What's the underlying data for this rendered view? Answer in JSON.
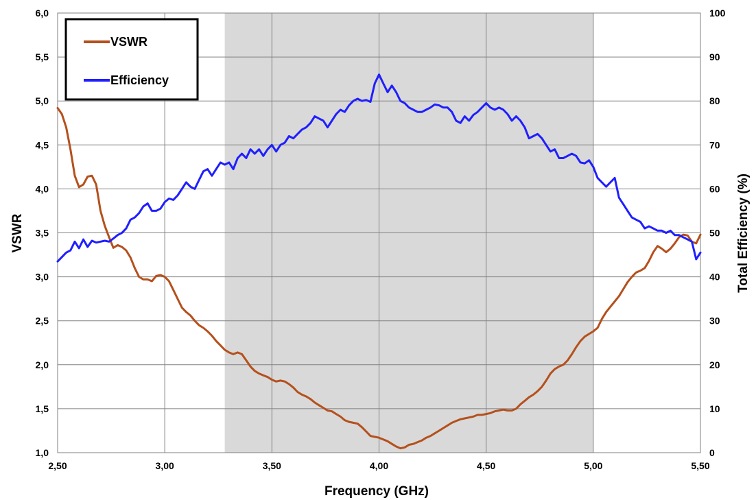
{
  "chart_data": {
    "type": "line",
    "title": "",
    "xlabel": "Frequency (GHz)",
    "ylabel": "VSWR",
    "y2label": "Total Efficiency (%)",
    "xlim": [
      2.5,
      5.5
    ],
    "ylim": [
      1.0,
      6.0
    ],
    "y2lim": [
      0,
      100
    ],
    "x_ticks": [
      "2,50",
      "3,00",
      "3,50",
      "4,00",
      "4,50",
      "5,00",
      "5,50"
    ],
    "y_ticks": [
      "1,0",
      "1,5",
      "2,0",
      "2,5",
      "3,0",
      "3,5",
      "4,0",
      "4,5",
      "5,0",
      "5,5",
      "6,0"
    ],
    "y2_ticks": [
      "0",
      "10",
      "20",
      "30",
      "40",
      "50",
      "60",
      "70",
      "80",
      "90",
      "100"
    ],
    "grid": true,
    "legend_position": "top-left",
    "shaded_band": [
      3.28,
      5.0
    ],
    "colors": {
      "vswr": "#b5501c",
      "efficiency": "#1f1fff",
      "band": "#d9d9d9"
    },
    "series": [
      {
        "name": "VSWR",
        "axis": "left",
        "points": [
          [
            2.5,
            4.92
          ],
          [
            2.52,
            4.85
          ],
          [
            2.54,
            4.7
          ],
          [
            2.56,
            4.45
          ],
          [
            2.58,
            4.15
          ],
          [
            2.6,
            4.02
          ],
          [
            2.62,
            4.05
          ],
          [
            2.64,
            4.14
          ],
          [
            2.66,
            4.15
          ],
          [
            2.68,
            4.05
          ],
          [
            2.7,
            3.75
          ],
          [
            2.72,
            3.58
          ],
          [
            2.74,
            3.45
          ],
          [
            2.76,
            3.33
          ],
          [
            2.78,
            3.36
          ],
          [
            2.8,
            3.34
          ],
          [
            2.82,
            3.3
          ],
          [
            2.84,
            3.22
          ],
          [
            2.86,
            3.1
          ],
          [
            2.88,
            3.0
          ],
          [
            2.9,
            2.97
          ],
          [
            2.92,
            2.97
          ],
          [
            2.94,
            2.95
          ],
          [
            2.96,
            3.01
          ],
          [
            2.98,
            3.02
          ],
          [
            3.0,
            3.0
          ],
          [
            3.02,
            2.95
          ],
          [
            3.04,
            2.85
          ],
          [
            3.06,
            2.75
          ],
          [
            3.08,
            2.65
          ],
          [
            3.1,
            2.6
          ],
          [
            3.12,
            2.56
          ],
          [
            3.14,
            2.5
          ],
          [
            3.16,
            2.45
          ],
          [
            3.18,
            2.42
          ],
          [
            3.2,
            2.38
          ],
          [
            3.22,
            2.33
          ],
          [
            3.24,
            2.27
          ],
          [
            3.26,
            2.22
          ],
          [
            3.28,
            2.17
          ],
          [
            3.3,
            2.14
          ],
          [
            3.32,
            2.12
          ],
          [
            3.34,
            2.14
          ],
          [
            3.36,
            2.12
          ],
          [
            3.38,
            2.05
          ],
          [
            3.4,
            1.98
          ],
          [
            3.42,
            1.93
          ],
          [
            3.44,
            1.9
          ],
          [
            3.46,
            1.88
          ],
          [
            3.48,
            1.86
          ],
          [
            3.5,
            1.83
          ],
          [
            3.52,
            1.81
          ],
          [
            3.54,
            1.82
          ],
          [
            3.56,
            1.81
          ],
          [
            3.58,
            1.78
          ],
          [
            3.6,
            1.74
          ],
          [
            3.62,
            1.69
          ],
          [
            3.64,
            1.66
          ],
          [
            3.66,
            1.64
          ],
          [
            3.68,
            1.61
          ],
          [
            3.7,
            1.57
          ],
          [
            3.72,
            1.54
          ],
          [
            3.74,
            1.51
          ],
          [
            3.76,
            1.48
          ],
          [
            3.78,
            1.47
          ],
          [
            3.8,
            1.44
          ],
          [
            3.82,
            1.41
          ],
          [
            3.84,
            1.37
          ],
          [
            3.86,
            1.35
          ],
          [
            3.88,
            1.34
          ],
          [
            3.9,
            1.33
          ],
          [
            3.92,
            1.29
          ],
          [
            3.94,
            1.24
          ],
          [
            3.96,
            1.19
          ],
          [
            3.98,
            1.18
          ],
          [
            4.0,
            1.17
          ],
          [
            4.02,
            1.15
          ],
          [
            4.04,
            1.13
          ],
          [
            4.06,
            1.1
          ],
          [
            4.08,
            1.07
          ],
          [
            4.1,
            1.05
          ],
          [
            4.12,
            1.06
          ],
          [
            4.14,
            1.09
          ],
          [
            4.16,
            1.1
          ],
          [
            4.18,
            1.12
          ],
          [
            4.2,
            1.14
          ],
          [
            4.22,
            1.17
          ],
          [
            4.24,
            1.19
          ],
          [
            4.26,
            1.22
          ],
          [
            4.28,
            1.25
          ],
          [
            4.3,
            1.28
          ],
          [
            4.32,
            1.31
          ],
          [
            4.34,
            1.34
          ],
          [
            4.36,
            1.36
          ],
          [
            4.38,
            1.38
          ],
          [
            4.4,
            1.39
          ],
          [
            4.42,
            1.4
          ],
          [
            4.44,
            1.41
          ],
          [
            4.46,
            1.43
          ],
          [
            4.48,
            1.43
          ],
          [
            4.5,
            1.44
          ],
          [
            4.52,
            1.45
          ],
          [
            4.54,
            1.47
          ],
          [
            4.56,
            1.48
          ],
          [
            4.58,
            1.49
          ],
          [
            4.6,
            1.48
          ],
          [
            4.62,
            1.48
          ],
          [
            4.64,
            1.5
          ],
          [
            4.66,
            1.55
          ],
          [
            4.68,
            1.59
          ],
          [
            4.7,
            1.63
          ],
          [
            4.72,
            1.66
          ],
          [
            4.74,
            1.7
          ],
          [
            4.76,
            1.75
          ],
          [
            4.78,
            1.82
          ],
          [
            4.8,
            1.9
          ],
          [
            4.82,
            1.95
          ],
          [
            4.84,
            1.98
          ],
          [
            4.86,
            2.0
          ],
          [
            4.88,
            2.05
          ],
          [
            4.9,
            2.12
          ],
          [
            4.92,
            2.2
          ],
          [
            4.94,
            2.27
          ],
          [
            4.96,
            2.32
          ],
          [
            4.98,
            2.35
          ],
          [
            5.0,
            2.38
          ],
          [
            5.02,
            2.42
          ],
          [
            5.04,
            2.52
          ],
          [
            5.06,
            2.6
          ],
          [
            5.08,
            2.66
          ],
          [
            5.1,
            2.72
          ],
          [
            5.12,
            2.78
          ],
          [
            5.14,
            2.86
          ],
          [
            5.16,
            2.94
          ],
          [
            5.18,
            3.0
          ],
          [
            5.2,
            3.05
          ],
          [
            5.22,
            3.07
          ],
          [
            5.24,
            3.1
          ],
          [
            5.26,
            3.18
          ],
          [
            5.28,
            3.28
          ],
          [
            5.3,
            3.35
          ],
          [
            5.32,
            3.32
          ],
          [
            5.34,
            3.28
          ],
          [
            5.36,
            3.32
          ],
          [
            5.38,
            3.38
          ],
          [
            5.4,
            3.45
          ],
          [
            5.42,
            3.48
          ],
          [
            5.44,
            3.47
          ],
          [
            5.46,
            3.4
          ],
          [
            5.48,
            3.38
          ],
          [
            5.5,
            3.48
          ]
        ]
      },
      {
        "name": "Efficiency",
        "axis": "right",
        "points": [
          [
            2.5,
            43.5
          ],
          [
            2.52,
            44.5
          ],
          [
            2.54,
            45.5
          ],
          [
            2.56,
            46.0
          ],
          [
            2.58,
            48.0
          ],
          [
            2.6,
            46.5
          ],
          [
            2.62,
            48.5
          ],
          [
            2.64,
            46.8
          ],
          [
            2.66,
            48.2
          ],
          [
            2.68,
            47.8
          ],
          [
            2.7,
            48.0
          ],
          [
            2.72,
            48.2
          ],
          [
            2.74,
            48.0
          ],
          [
            2.76,
            48.7
          ],
          [
            2.78,
            49.5
          ],
          [
            2.8,
            50.0
          ],
          [
            2.82,
            51.0
          ],
          [
            2.84,
            53.0
          ],
          [
            2.86,
            53.5
          ],
          [
            2.88,
            54.5
          ],
          [
            2.9,
            56.0
          ],
          [
            2.92,
            56.7
          ],
          [
            2.94,
            55.0
          ],
          [
            2.96,
            55.0
          ],
          [
            2.98,
            55.5
          ],
          [
            3.0,
            57.0
          ],
          [
            3.02,
            57.8
          ],
          [
            3.04,
            57.5
          ],
          [
            3.06,
            58.5
          ],
          [
            3.08,
            60.0
          ],
          [
            3.1,
            61.5
          ],
          [
            3.12,
            60.5
          ],
          [
            3.14,
            60.0
          ],
          [
            3.16,
            62.0
          ],
          [
            3.18,
            64.0
          ],
          [
            3.2,
            64.5
          ],
          [
            3.22,
            63.0
          ],
          [
            3.24,
            64.5
          ],
          [
            3.26,
            66.0
          ],
          [
            3.28,
            65.5
          ],
          [
            3.3,
            66.0
          ],
          [
            3.32,
            64.5
          ],
          [
            3.34,
            67.0
          ],
          [
            3.36,
            68.0
          ],
          [
            3.38,
            67.0
          ],
          [
            3.4,
            69.0
          ],
          [
            3.42,
            68.0
          ],
          [
            3.44,
            69.0
          ],
          [
            3.46,
            67.5
          ],
          [
            3.48,
            69.0
          ],
          [
            3.5,
            70.0
          ],
          [
            3.52,
            68.5
          ],
          [
            3.54,
            70.0
          ],
          [
            3.56,
            70.5
          ],
          [
            3.58,
            72.0
          ],
          [
            3.6,
            71.5
          ],
          [
            3.62,
            72.5
          ],
          [
            3.64,
            73.5
          ],
          [
            3.66,
            74.0
          ],
          [
            3.68,
            75.0
          ],
          [
            3.7,
            76.5
          ],
          [
            3.72,
            76.0
          ],
          [
            3.74,
            75.5
          ],
          [
            3.76,
            74.0
          ],
          [
            3.78,
            75.5
          ],
          [
            3.8,
            77.0
          ],
          [
            3.82,
            78.0
          ],
          [
            3.84,
            77.5
          ],
          [
            3.86,
            79.0
          ],
          [
            3.88,
            80.0
          ],
          [
            3.9,
            80.5
          ],
          [
            3.92,
            80.0
          ],
          [
            3.94,
            80.2
          ],
          [
            3.96,
            79.8
          ],
          [
            3.98,
            84.0
          ],
          [
            4.0,
            86.0
          ],
          [
            4.02,
            84.0
          ],
          [
            4.04,
            82.0
          ],
          [
            4.06,
            83.5
          ],
          [
            4.08,
            82.0
          ],
          [
            4.1,
            80.0
          ],
          [
            4.12,
            79.5
          ],
          [
            4.14,
            78.5
          ],
          [
            4.16,
            78.0
          ],
          [
            4.18,
            77.5
          ],
          [
            4.2,
            77.5
          ],
          [
            4.22,
            78.0
          ],
          [
            4.24,
            78.5
          ],
          [
            4.26,
            79.2
          ],
          [
            4.28,
            79.0
          ],
          [
            4.3,
            78.5
          ],
          [
            4.32,
            78.5
          ],
          [
            4.34,
            77.5
          ],
          [
            4.36,
            75.5
          ],
          [
            4.38,
            75.0
          ],
          [
            4.4,
            76.5
          ],
          [
            4.42,
            75.5
          ],
          [
            4.44,
            76.8
          ],
          [
            4.46,
            77.5
          ],
          [
            4.48,
            78.5
          ],
          [
            4.5,
            79.5
          ],
          [
            4.52,
            78.5
          ],
          [
            4.54,
            78.0
          ],
          [
            4.56,
            78.5
          ],
          [
            4.58,
            78.0
          ],
          [
            4.6,
            77.0
          ],
          [
            4.62,
            75.5
          ],
          [
            4.64,
            76.5
          ],
          [
            4.66,
            75.5
          ],
          [
            4.68,
            74.0
          ],
          [
            4.7,
            71.5
          ],
          [
            4.72,
            72.0
          ],
          [
            4.74,
            72.5
          ],
          [
            4.76,
            71.5
          ],
          [
            4.78,
            70.0
          ],
          [
            4.8,
            68.5
          ],
          [
            4.82,
            69.0
          ],
          [
            4.84,
            67.0
          ],
          [
            4.86,
            67.0
          ],
          [
            4.88,
            67.5
          ],
          [
            4.9,
            68.0
          ],
          [
            4.92,
            67.5
          ],
          [
            4.94,
            66.0
          ],
          [
            4.96,
            65.8
          ],
          [
            4.98,
            66.5
          ],
          [
            5.0,
            65.0
          ],
          [
            5.02,
            62.5
          ],
          [
            5.04,
            61.5
          ],
          [
            5.06,
            60.5
          ],
          [
            5.08,
            61.5
          ],
          [
            5.1,
            62.5
          ],
          [
            5.12,
            58.0
          ],
          [
            5.14,
            56.5
          ],
          [
            5.16,
            55.0
          ],
          [
            5.18,
            53.5
          ],
          [
            5.2,
            53.0
          ],
          [
            5.22,
            52.5
          ],
          [
            5.24,
            51.0
          ],
          [
            5.26,
            51.5
          ],
          [
            5.28,
            51.0
          ],
          [
            5.3,
            50.5
          ],
          [
            5.32,
            50.5
          ],
          [
            5.34,
            50.0
          ],
          [
            5.36,
            50.5
          ],
          [
            5.38,
            49.5
          ],
          [
            5.4,
            49.5
          ],
          [
            5.42,
            49.0
          ],
          [
            5.44,
            48.5
          ],
          [
            5.46,
            48.0
          ],
          [
            5.48,
            44.0
          ],
          [
            5.5,
            45.5
          ]
        ]
      }
    ]
  }
}
